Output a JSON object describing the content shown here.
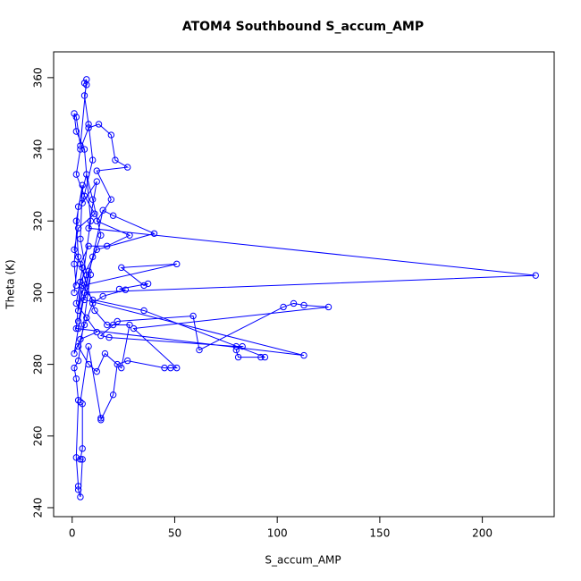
{
  "chart_data": {
    "type": "scatter",
    "lines": true,
    "color": "#0000ff",
    "title": "ATOM4 Southbound S_accum_AMP",
    "x_label": "S_accum_AMP",
    "y_label": "Theta (K)",
    "xlim": [
      -9.04,
      235.04
    ],
    "ylim": [
      237.5,
      367.2
    ],
    "xticks": [
      0,
      50,
      100,
      150,
      200
    ],
    "yticks": [
      240,
      260,
      280,
      300,
      320,
      340,
      360
    ],
    "x": [
      1,
      3,
      2,
      5,
      4,
      7,
      3,
      9,
      6,
      2,
      1,
      2,
      4,
      7,
      6,
      7,
      6,
      8,
      10,
      5,
      12,
      8,
      226,
      6,
      3,
      10,
      15,
      20,
      40,
      12,
      4,
      2,
      113,
      6,
      9,
      3,
      1,
      2,
      3,
      2,
      3,
      3,
      4,
      5,
      4,
      5,
      5,
      4,
      8,
      14,
      14,
      20,
      22,
      27,
      45,
      48,
      51,
      30,
      125,
      113,
      108,
      103,
      62,
      59,
      22,
      14,
      18,
      80,
      83,
      80,
      81,
      92,
      94,
      35,
      10,
      5,
      51,
      24,
      35,
      37,
      23,
      26,
      15,
      10,
      6,
      3,
      8,
      12,
      16,
      24,
      28,
      20,
      17,
      11,
      4,
      8,
      17,
      28,
      12,
      19,
      12,
      27,
      21,
      19,
      13,
      8,
      4,
      2,
      6,
      11,
      3,
      1,
      5,
      2,
      7,
      12,
      4,
      1,
      3,
      8,
      14,
      10,
      7,
      3,
      1,
      2
    ],
    "y": [
      300,
      310,
      320,
      330,
      315,
      305,
      295,
      320,
      340,
      345,
      350,
      349,
      341,
      359.5,
      358.5,
      358,
      355,
      347,
      337,
      325,
      331,
      318,
      304.8,
      300,
      292,
      310,
      323,
      321.5,
      316.5,
      312,
      303,
      290,
      282.5,
      298,
      305,
      281,
      279,
      276,
      270,
      254,
      246,
      245,
      243,
      253.5,
      253.5,
      256.5,
      269,
      269.5,
      285,
      265,
      264.5,
      271.5,
      280,
      281,
      279,
      279,
      279,
      290,
      296,
      296.5,
      297,
      296,
      284,
      293.5,
      292,
      288,
      287.5,
      285,
      285,
      284,
      282,
      282,
      282,
      295,
      298,
      302,
      308,
      307,
      302,
      302.5,
      301,
      300.8,
      299,
      297,
      291,
      285,
      280,
      278,
      283,
      279,
      291,
      291,
      291,
      295,
      308,
      313,
      313,
      316,
      320,
      326,
      334,
      335,
      337,
      344,
      347,
      346,
      340,
      333,
      327,
      322,
      318,
      312,
      307,
      297,
      293,
      289,
      287,
      283,
      290,
      306,
      316,
      326,
      333,
      324,
      308,
      302
    ]
  }
}
